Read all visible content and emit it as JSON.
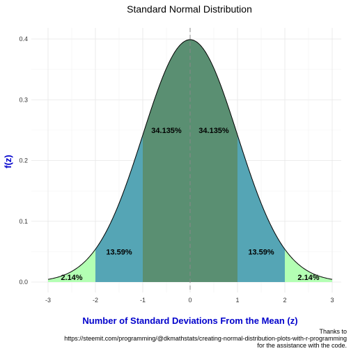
{
  "chart_data": {
    "type": "area",
    "title": "Standard Normal Distribution",
    "xlabel": "Number of Standard Deviations From the Mean (z)",
    "ylabel": "f(z)",
    "xlim": [
      -3,
      3
    ],
    "ylim": [
      0,
      0.4
    ],
    "x_ticks": [
      -3,
      -2,
      -1,
      0,
      1,
      2,
      3
    ],
    "x_tick_labels": [
      "-3",
      "-2",
      "-1",
      "0",
      "1",
      "2",
      "3"
    ],
    "y_ticks": [
      0,
      0.1,
      0.2,
      0.3,
      0.4
    ],
    "y_tick_labels": [
      "0.0",
      "0.1",
      "0.2",
      "0.3",
      "0.4"
    ],
    "grid": true,
    "mean_line": 0,
    "regions": [
      {
        "from": -3,
        "to": -2,
        "label": "2.14%",
        "color": "#b3ffb3"
      },
      {
        "from": -2,
        "to": -1,
        "label": "13.59%",
        "color": "#55a5b5"
      },
      {
        "from": -1,
        "to": 0,
        "label": "34.135%",
        "color": "#5a8f72"
      },
      {
        "from": 0,
        "to": 1,
        "label": "34.135%",
        "color": "#5a8f72"
      },
      {
        "from": 1,
        "to": 2,
        "label": "13.59%",
        "color": "#55a5b5"
      },
      {
        "from": 2,
        "to": 3,
        "label": "2.14%",
        "color": "#b3ffb3"
      }
    ],
    "caption_lines": [
      "Thanks to",
      "https://steemit.com/programming/@dkmathstats/creating-normal-distribution-plots-with-r-programming",
      "for the assistance with the code."
    ],
    "axis_label_color": "#0000cc"
  }
}
